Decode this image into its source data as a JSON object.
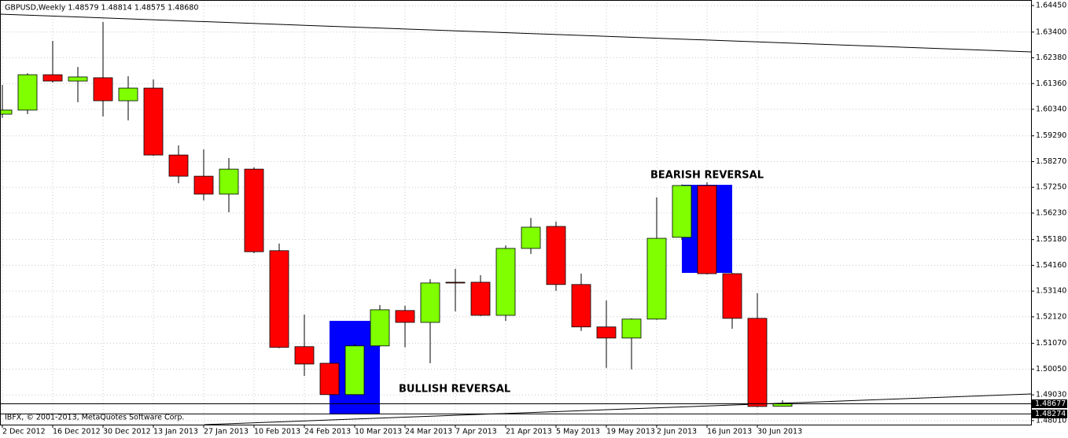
{
  "chart_data": {
    "type": "candlestick",
    "title": "GBPUSD,Weekly  1.48579 1.48814 1.48575 1.48680",
    "footer": "IBFX, © 2001-2013, MetaQuotes Software Corp.",
    "annotations": [
      "BEARISH REVERSAL",
      "BULLISH REVERSAL"
    ],
    "categories": [
      "2 Dec 2012",
      null,
      "16 Dec 2012",
      null,
      "30 Dec 2012",
      null,
      "13 Jan 2013",
      null,
      "27 Jan 2013",
      null,
      "10 Feb 2013",
      null,
      "24 Feb 2013",
      null,
      "10 Mar 2013",
      null,
      "24 Mar 2013",
      null,
      "7 Apr 2013",
      null,
      "21 Apr 2013",
      null,
      "5 May 2013",
      null,
      "19 May 2013",
      null,
      "2 Jun 2013",
      null,
      "16 Jun 2013",
      null,
      "30 Jun 2013",
      null
    ],
    "open": [
      1.6015,
      1.6031,
      1.6171,
      1.6146,
      1.6159,
      1.6068,
      1.6118,
      1.5853,
      1.5769,
      1.5698,
      1.5797,
      1.5474,
      1.5094,
      1.5028,
      1.4904,
      1.5097,
      1.5237,
      1.519,
      1.5349,
      1.5349,
      1.5218,
      1.5483,
      1.557,
      1.534,
      1.5172,
      1.5128,
      1.5203,
      1.5527,
      1.5732,
      1.5383,
      1.5206,
      1.48579
    ],
    "high": [
      1.6131,
      1.6177,
      1.6305,
      1.6202,
      1.638,
      1.6165,
      1.6152,
      1.5891,
      1.5875,
      1.5841,
      1.5804,
      1.5502,
      1.5221,
      1.503,
      1.5106,
      1.5259,
      1.5256,
      1.5361,
      1.5402,
      1.5377,
      1.5495,
      1.5604,
      1.5589,
      1.5383,
      1.5277,
      1.5206,
      1.5685,
      1.5736,
      1.5745,
      1.5386,
      1.5305,
      1.48814
    ],
    "low": [
      1.6,
      1.6015,
      1.614,
      1.6062,
      1.6006,
      1.599,
      1.585,
      1.5741,
      1.5673,
      1.5626,
      1.5464,
      1.5088,
      1.4978,
      1.4901,
      1.4901,
      1.5094,
      1.5091,
      1.5028,
      1.5234,
      1.5215,
      1.5196,
      1.5461,
      1.5315,
      1.5156,
      1.501,
      1.5004,
      1.52,
      1.5517,
      1.538,
      1.5165,
      1.4854,
      1.48575
    ],
    "close": [
      1.6031,
      1.6171,
      1.6146,
      1.6162,
      1.6068,
      1.6118,
      1.5853,
      1.5769,
      1.5698,
      1.5797,
      1.547,
      1.5091,
      1.5025,
      1.4904,
      1.5097,
      1.524,
      1.519,
      1.5346,
      1.5348,
      1.5218,
      1.5483,
      1.5567,
      1.534,
      1.5172,
      1.5128,
      1.5203,
      1.5523,
      1.5732,
      1.5383,
      1.5206,
      1.4857,
      1.4868
    ],
    "up_color": "#7fff00",
    "down_color": "#ff0000",
    "wick_color": "#000000",
    "ylim": [
      1.4785,
      1.6467
    ],
    "yticks": [
      {
        "value": 1.6445,
        "label": "1.64450"
      },
      {
        "value": 1.634,
        "label": "1.63400"
      },
      {
        "value": 1.6238,
        "label": "1.62380"
      },
      {
        "value": 1.6136,
        "label": "1.61360"
      },
      {
        "value": 1.6034,
        "label": "1.60340"
      },
      {
        "value": 1.5929,
        "label": "1.59290"
      },
      {
        "value": 1.5827,
        "label": "1.58270"
      },
      {
        "value": 1.5725,
        "label": "1.57250"
      },
      {
        "value": 1.5623,
        "label": "1.56230"
      },
      {
        "value": 1.5518,
        "label": "1.55180"
      },
      {
        "value": 1.5416,
        "label": "1.54160"
      },
      {
        "value": 1.5314,
        "label": "1.53140"
      },
      {
        "value": 1.5212,
        "label": "1.52120"
      },
      {
        "value": 1.5107,
        "label": "1.51070"
      },
      {
        "value": 1.5005,
        "label": "1.50050"
      },
      {
        "value": 1.4903,
        "label": "1.49030"
      },
      {
        "value": 1.4801,
        "label": "1.48010"
      }
    ],
    "price_lines": [
      1.48677,
      1.48274
    ],
    "grid": true
  }
}
